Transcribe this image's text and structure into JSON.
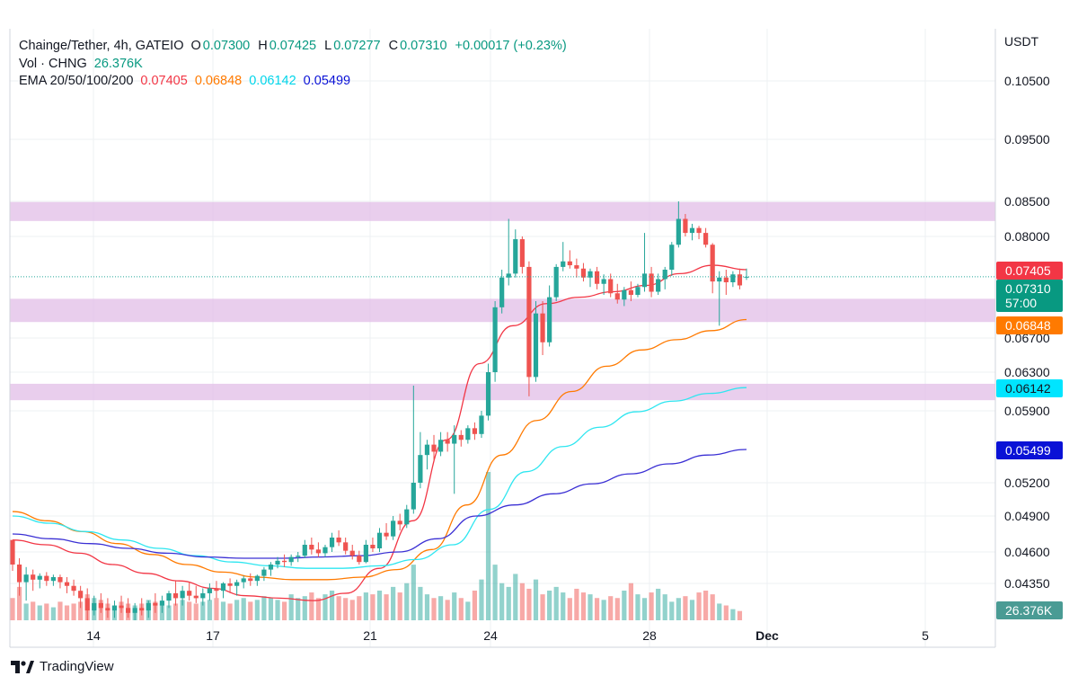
{
  "header": {
    "symbol": "Chainge/Tether, 4h, GATEIO",
    "ohlc": {
      "o_label": "O",
      "o": "0.07300",
      "h_label": "H",
      "h": "0.07425",
      "l_label": "L",
      "l": "0.07277",
      "c_label": "C",
      "c": "0.07310",
      "change": "+0.00017 (+0.23%)"
    },
    "vol_label": "Vol · CHNG",
    "vol_value": "26.376K",
    "ema_label": "EMA 20/50/100/200",
    "ema_values": [
      "0.07405",
      "0.06848",
      "0.06142",
      "0.05499"
    ]
  },
  "brand": {
    "name": "TradingView"
  },
  "chart_data": {
    "type": "candlestick",
    "price_axis": {
      "currency": "USDT",
      "ticks": [
        "0.10500",
        "0.09500",
        "0.08500",
        "0.08000",
        "0.06700",
        "0.06300",
        "0.05900",
        "0.05200",
        "0.04900",
        "0.04600",
        "0.04350"
      ]
    },
    "time_axis": {
      "ticks": [
        "14",
        "17",
        "21",
        "24",
        "28",
        "Dec",
        "5"
      ]
    },
    "price_labels": [
      {
        "value": "0.07405",
        "color": "#f23645",
        "sub": ""
      },
      {
        "value": "0.07310",
        "color": "#089981",
        "sub": "57:00"
      },
      {
        "value": "0.06848",
        "color": "#ff7a00",
        "sub": ""
      },
      {
        "value": "0.06142",
        "color": "#00e5ff",
        "sub": ""
      },
      {
        "value": "0.05499",
        "color": "#0a12d6",
        "sub": ""
      }
    ],
    "volume_label": "26.376K",
    "zones": [
      {
        "from": 0.0822,
        "to": 0.0849
      },
      {
        "from": 0.0683,
        "to": 0.0703
      },
      {
        "from": 0.0601,
        "to": 0.0618
      }
    ],
    "candles": [
      [
        0.047,
        0.047,
        0.0445,
        0.045
      ],
      [
        0.045,
        0.0455,
        0.043,
        0.0436
      ],
      [
        0.0436,
        0.0448,
        0.0428,
        0.0442
      ],
      [
        0.0442,
        0.0446,
        0.0432,
        0.0438
      ],
      [
        0.0438,
        0.0443,
        0.0433,
        0.0441
      ],
      [
        0.0441,
        0.0444,
        0.0434,
        0.0437
      ],
      [
        0.0437,
        0.0442,
        0.0434,
        0.044
      ],
      [
        0.044,
        0.0442,
        0.0433,
        0.0436
      ],
      [
        0.0436,
        0.044,
        0.0431,
        0.0434
      ],
      [
        0.0434,
        0.0438,
        0.043,
        0.0432
      ],
      [
        0.0432,
        0.0434,
        0.0425,
        0.0429
      ],
      [
        0.0429,
        0.0433,
        0.042,
        0.0424
      ],
      [
        0.0424,
        0.043,
        0.0422,
        0.0427
      ],
      [
        0.0427,
        0.0431,
        0.0423,
        0.0425
      ],
      [
        0.0425,
        0.0429,
        0.0421,
        0.0424
      ],
      [
        0.0424,
        0.0428,
        0.0421,
        0.0426
      ],
      [
        0.0426,
        0.043,
        0.0423,
        0.0425
      ],
      [
        0.0425,
        0.0429,
        0.0421,
        0.0423
      ],
      [
        0.0423,
        0.0427,
        0.042,
        0.0425
      ],
      [
        0.0425,
        0.0429,
        0.0422,
        0.0424
      ],
      [
        0.0424,
        0.0428,
        0.0421,
        0.0427
      ],
      [
        0.0427,
        0.0431,
        0.0423,
        0.0426
      ],
      [
        0.0426,
        0.043,
        0.0423,
        0.0428
      ],
      [
        0.0428,
        0.0432,
        0.0425,
        0.0431
      ],
      [
        0.0431,
        0.0437,
        0.0426,
        0.0429
      ],
      [
        0.0429,
        0.0434,
        0.0426,
        0.0432
      ],
      [
        0.0432,
        0.0436,
        0.0428,
        0.043
      ],
      [
        0.043,
        0.0434,
        0.0427,
        0.0429
      ],
      [
        0.0429,
        0.0433,
        0.0426,
        0.0431
      ],
      [
        0.0431,
        0.0435,
        0.0428,
        0.0433
      ],
      [
        0.0433,
        0.0437,
        0.0429,
        0.0432
      ],
      [
        0.0432,
        0.0436,
        0.0429,
        0.0435
      ],
      [
        0.0435,
        0.0439,
        0.0431,
        0.0434
      ],
      [
        0.0434,
        0.0438,
        0.043,
        0.0436
      ],
      [
        0.0436,
        0.0441,
        0.0433,
        0.0439
      ],
      [
        0.0439,
        0.0443,
        0.0434,
        0.0437
      ],
      [
        0.0437,
        0.0442,
        0.0434,
        0.0441
      ],
      [
        0.0441,
        0.0448,
        0.0437,
        0.0446
      ],
      [
        0.0446,
        0.0452,
        0.0441,
        0.045
      ],
      [
        0.045,
        0.0456,
        0.0447,
        0.0453
      ],
      [
        0.0453,
        0.0458,
        0.0448,
        0.0452
      ],
      [
        0.0452,
        0.0458,
        0.0449,
        0.0456
      ],
      [
        0.0456,
        0.046,
        0.0452,
        0.0457
      ],
      [
        0.0457,
        0.047,
        0.0455,
        0.0466
      ],
      [
        0.0466,
        0.0472,
        0.0458,
        0.0462
      ],
      [
        0.0462,
        0.0468,
        0.0456,
        0.0459
      ],
      [
        0.0459,
        0.0466,
        0.0456,
        0.0464
      ],
      [
        0.0464,
        0.0476,
        0.046,
        0.0472
      ],
      [
        0.0472,
        0.0478,
        0.0465,
        0.0468
      ],
      [
        0.0468,
        0.0472,
        0.0458,
        0.0461
      ],
      [
        0.0461,
        0.0466,
        0.0454,
        0.0457
      ],
      [
        0.0457,
        0.0461,
        0.045,
        0.0452
      ],
      [
        0.0452,
        0.047,
        0.0451,
        0.0466
      ],
      [
        0.0466,
        0.0472,
        0.046,
        0.0463
      ],
      [
        0.0463,
        0.048,
        0.046,
        0.0476
      ],
      [
        0.0476,
        0.0484,
        0.047,
        0.0473
      ],
      [
        0.0473,
        0.049,
        0.047,
        0.0486
      ],
      [
        0.0486,
        0.0492,
        0.0478,
        0.0483
      ],
      [
        0.0483,
        0.05,
        0.048,
        0.0496
      ],
      [
        0.0496,
        0.0616,
        0.0492,
        0.052
      ],
      [
        0.052,
        0.0568,
        0.0515,
        0.0545
      ],
      [
        0.0545,
        0.056,
        0.0532,
        0.0555
      ],
      [
        0.0555,
        0.0565,
        0.054,
        0.0548
      ],
      [
        0.0548,
        0.0568,
        0.0544,
        0.056
      ],
      [
        0.056,
        0.0568,
        0.0548,
        0.0556
      ],
      [
        0.0556,
        0.0575,
        0.051,
        0.0565
      ],
      [
        0.0565,
        0.057,
        0.0553,
        0.056
      ],
      [
        0.056,
        0.0575,
        0.0556,
        0.0572
      ],
      [
        0.0572,
        0.0578,
        0.056,
        0.0566
      ],
      [
        0.0566,
        0.059,
        0.0562,
        0.0585
      ],
      [
        0.0585,
        0.064,
        0.058,
        0.063
      ],
      [
        0.063,
        0.07,
        0.062,
        0.0695
      ],
      [
        0.0695,
        0.074,
        0.069,
        0.073
      ],
      [
        0.073,
        0.0825,
        0.072,
        0.0735
      ],
      [
        0.0735,
        0.081,
        0.073,
        0.0795
      ],
      [
        0.0795,
        0.08,
        0.0735,
        0.0745
      ],
      [
        0.0745,
        0.0755,
        0.0605,
        0.0625
      ],
      [
        0.0625,
        0.07,
        0.062,
        0.069
      ],
      [
        0.069,
        0.07,
        0.065,
        0.0665
      ],
      [
        0.0665,
        0.072,
        0.066,
        0.0705
      ],
      [
        0.0705,
        0.075,
        0.07,
        0.0745
      ],
      [
        0.0745,
        0.079,
        0.0738,
        0.0755
      ],
      [
        0.0755,
        0.0775,
        0.0742,
        0.0748
      ],
      [
        0.0748,
        0.076,
        0.073,
        0.0742
      ],
      [
        0.0742,
        0.0752,
        0.0725,
        0.073
      ],
      [
        0.073,
        0.0742,
        0.0718,
        0.0738
      ],
      [
        0.0738,
        0.0745,
        0.0715,
        0.0722
      ],
      [
        0.0722,
        0.0734,
        0.0708,
        0.0728
      ],
      [
        0.0728,
        0.0735,
        0.0705,
        0.071
      ],
      [
        0.071,
        0.0722,
        0.0698,
        0.0702
      ],
      [
        0.0702,
        0.0718,
        0.0696,
        0.0714
      ],
      [
        0.0714,
        0.0725,
        0.07,
        0.0708
      ],
      [
        0.0708,
        0.0722,
        0.0705,
        0.0718
      ],
      [
        0.0718,
        0.0805,
        0.0712,
        0.0735
      ],
      [
        0.0735,
        0.0745,
        0.0705,
        0.0712
      ],
      [
        0.0712,
        0.0735,
        0.0708,
        0.0728
      ],
      [
        0.0728,
        0.0745,
        0.0715,
        0.074
      ],
      [
        0.074,
        0.079,
        0.0732,
        0.0785
      ],
      [
        0.0785,
        0.085,
        0.078,
        0.0825
      ],
      [
        0.0825,
        0.0832,
        0.08,
        0.0805
      ],
      [
        0.0805,
        0.0818,
        0.0793,
        0.0812
      ],
      [
        0.0812,
        0.0815,
        0.0795,
        0.0805
      ],
      [
        0.0805,
        0.0812,
        0.078,
        0.0785
      ],
      [
        0.0785,
        0.0788,
        0.071,
        0.0725
      ],
      [
        0.0725,
        0.0738,
        0.068,
        0.073
      ],
      [
        0.073,
        0.074,
        0.0708,
        0.0724
      ],
      [
        0.0724,
        0.0738,
        0.0718,
        0.0734
      ],
      [
        0.0734,
        0.0742,
        0.0715,
        0.072
      ],
      [
        0.073,
        0.0742,
        0.0727,
        0.0731
      ]
    ],
    "ema": {
      "20": {
        "color": "#f23645",
        "values": [
          0.047,
          0.0466,
          0.0459,
          0.045,
          0.0443,
          0.0437,
          0.0433,
          0.043,
          0.0429,
          0.0428,
          0.0431,
          0.0447,
          0.0486,
          0.056,
          0.064,
          0.068,
          0.0698,
          0.0705,
          0.0712,
          0.072,
          0.0735,
          0.0748,
          0.074
        ]
      },
      "50": {
        "color": "#ff7a00",
        "values": [
          0.0494,
          0.0486,
          0.0477,
          0.0467,
          0.0458,
          0.045,
          0.0444,
          0.044,
          0.0438,
          0.0438,
          0.044,
          0.0446,
          0.0462,
          0.05,
          0.0545,
          0.058,
          0.061,
          0.0637,
          0.0656,
          0.0668,
          0.0676,
          0.0685
        ]
      },
      "100": {
        "color": "#2ee6f0",
        "values": [
          0.049,
          0.0484,
          0.0477,
          0.047,
          0.0463,
          0.0457,
          0.0452,
          0.0449,
          0.0447,
          0.0447,
          0.0449,
          0.0454,
          0.0466,
          0.0496,
          0.053,
          0.0553,
          0.0573,
          0.0589,
          0.06,
          0.0608,
          0.0614
        ]
      },
      "200": {
        "color": "#3b30d4",
        "values": [
          0.0475,
          0.0471,
          0.0467,
          0.0463,
          0.0459,
          0.0456,
          0.0455,
          0.0455,
          0.0456,
          0.0457,
          0.046,
          0.0471,
          0.049,
          0.05,
          0.051,
          0.0519,
          0.0528,
          0.0537,
          0.0545,
          0.055
        ]
      }
    },
    "volume": [
      12,
      18,
      9,
      10,
      8,
      9,
      7,
      10,
      8,
      9,
      10,
      14,
      12,
      11,
      9,
      8,
      10,
      9,
      8,
      9,
      11,
      10,
      9,
      8,
      9,
      11,
      10,
      9,
      10,
      11,
      12,
      10,
      9,
      11,
      12,
      10,
      11,
      13,
      12,
      11,
      10,
      14,
      12,
      13,
      15,
      12,
      14,
      16,
      13,
      12,
      11,
      13,
      15,
      14,
      16,
      14,
      18,
      15,
      20,
      30,
      18,
      14,
      12,
      13,
      11,
      15,
      12,
      10,
      16,
      22,
      80,
      30,
      20,
      18,
      25,
      20,
      17,
      22,
      14,
      16,
      18,
      15,
      12,
      17,
      15,
      14,
      12,
      11,
      13,
      12,
      16,
      20,
      14,
      12,
      15,
      17,
      14,
      10,
      12,
      13,
      11,
      15,
      16,
      14,
      9,
      8,
      6,
      5
    ]
  }
}
